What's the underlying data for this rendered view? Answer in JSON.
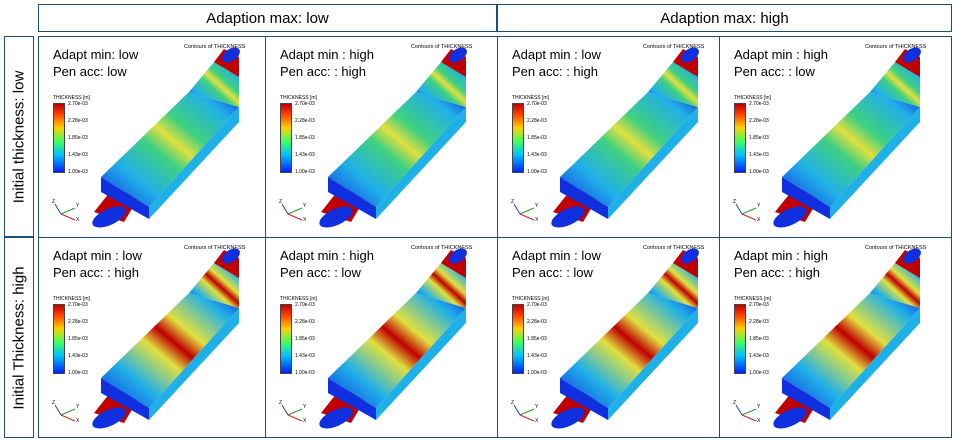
{
  "columns": [
    "Adaption max: low",
    "Adaption max: high"
  ],
  "rows": [
    "Initial thickness: low",
    "Initial Thickness: high"
  ],
  "panels": [
    {
      "line1": "Adapt min: low",
      "line2": "Pen acc: low",
      "scheme": "low"
    },
    {
      "line1": "Adapt min : high",
      "line2": "Pen acc: : high",
      "scheme": "low"
    },
    {
      "line1": "Adapt min : low",
      "line2": "Pen acc: : high",
      "scheme": "low"
    },
    {
      "line1": "Adapt min : high",
      "line2": "Pen acc: : low",
      "scheme": "low"
    },
    {
      "line1": "Adapt min : low",
      "line2": "Pen acc: : high",
      "scheme": "high"
    },
    {
      "line1": "Adapt min : high",
      "line2": "Pen acc: : low",
      "scheme": "high"
    },
    {
      "line1": "Adapt min : low",
      "line2": "Pen acc: : low",
      "scheme": "high"
    },
    {
      "line1": "Adapt min : high",
      "line2": "Pen acc: : high",
      "scheme": "high"
    }
  ],
  "contour_title": "Contours of THICKNESS",
  "colorbar": {
    "title": "THICKNESS [m]",
    "ticks": [
      "2.70e-03",
      "2.28e-03",
      "1.85e-03",
      "1.43e-03",
      "1.00e-03"
    ]
  },
  "axis_labels": {
    "x": "X",
    "y": "Y",
    "z": "Z"
  },
  "colors": {
    "border": "#1f4e79",
    "red": "#c00000",
    "blue": "#1030e0",
    "cyan": "#20b0e8",
    "green": "#40d080",
    "yellow": "#e0e040"
  }
}
